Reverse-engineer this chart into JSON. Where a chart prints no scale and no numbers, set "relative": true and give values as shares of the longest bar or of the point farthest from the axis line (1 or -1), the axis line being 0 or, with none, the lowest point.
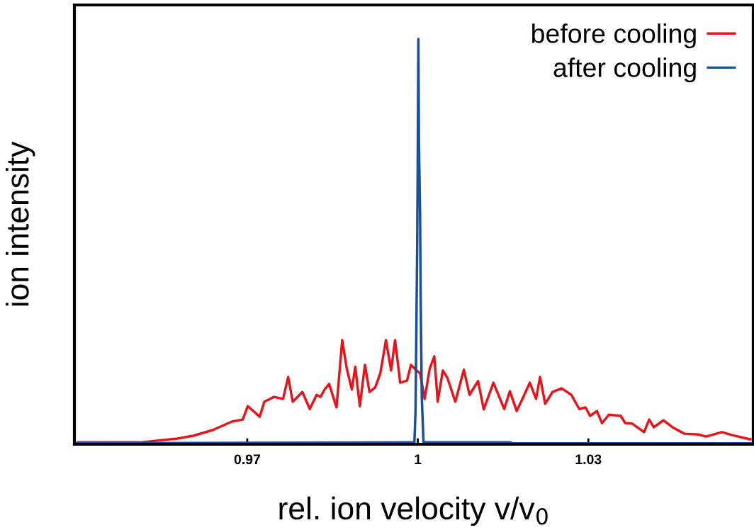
{
  "chart_data": {
    "type": "line",
    "xlabel": "rel. ion velocity v/v$_{0}$",
    "ylabel": "ion intensity",
    "relative": true,
    "legend": "top right",
    "grid": false,
    "xlim": [
      0.9396,
      1.059
    ],
    "xticks": [
      0.97,
      1,
      1.03
    ],
    "series": [
      {
        "name": "before cooling",
        "color": "#e8141a",
        "x": [
          0.9402,
          0.9514,
          0.9577,
          0.9605,
          0.9639,
          0.9673,
          0.9692,
          0.9701,
          0.9722,
          0.973,
          0.9747,
          0.9763,
          0.9772,
          0.978,
          0.9797,
          0.981,
          0.9822,
          0.9829,
          0.9836,
          0.9844,
          0.9857,
          0.9867,
          0.9875,
          0.9884,
          0.989,
          0.9898,
          0.9907,
          0.9915,
          0.9925,
          0.9934,
          0.9944,
          0.9953,
          0.996,
          0.9969,
          0.9981,
          0.9988,
          0.9998,
          1.0004,
          1.0012,
          1.0021,
          1.0029,
          1.0035,
          1.0044,
          1.0052,
          1.0066,
          1.0081,
          1.0091,
          1.0106,
          1.0116,
          1.0133,
          1.0152,
          1.0162,
          1.0174,
          1.0187,
          1.0197,
          1.0208,
          1.0215,
          1.0224,
          1.0237,
          1.0253,
          1.027,
          1.0284,
          1.0295,
          1.0303,
          1.0315,
          1.0324,
          1.0336,
          1.0357,
          1.0365,
          1.0377,
          1.0398,
          1.0407,
          1.0415,
          1.0432,
          1.0448,
          1.0469,
          1.0494,
          1.0507,
          1.0535,
          1.0552,
          1.0585
        ],
        "values": [
          0.005,
          0.005,
          0.014,
          0.021,
          0.035,
          0.056,
          0.061,
          0.094,
          0.068,
          0.105,
          0.117,
          0.112,
          0.166,
          0.105,
          0.129,
          0.087,
          0.122,
          0.117,
          0.135,
          0.149,
          0.091,
          0.257,
          0.187,
          0.135,
          0.191,
          0.094,
          0.196,
          0.129,
          0.14,
          0.175,
          0.257,
          0.182,
          0.257,
          0.152,
          0.157,
          0.196,
          0.182,
          0.175,
          0.112,
          0.187,
          0.217,
          0.105,
          0.182,
          0.164,
          0.105,
          0.184,
          0.122,
          0.156,
          0.086,
          0.152,
          0.087,
          0.131,
          0.082,
          0.121,
          0.152,
          0.112,
          0.166,
          0.1,
          0.129,
          0.138,
          0.122,
          0.087,
          0.091,
          0.07,
          0.082,
          0.052,
          0.073,
          0.07,
          0.052,
          0.051,
          0.03,
          0.061,
          0.042,
          0.059,
          0.042,
          0.026,
          0.024,
          0.019,
          0.03,
          0.023,
          0.012
        ]
      },
      {
        "name": "after cooling",
        "color": "#1a4f9c",
        "x": [
          0.9396,
          0.9988,
          0.9994,
          0.9996,
          0.9999,
          1.0,
          1.0001,
          1.0002,
          1.0004,
          1.0005,
          1.0007,
          1.001,
          1.0162,
          1.0168,
          1.0585
        ],
        "values": [
          0.002,
          0.005,
          0.005,
          0.082,
          0.502,
          0.747,
          1,
          0.747,
          0.572,
          0.362,
          0.117,
          0.005,
          0.005,
          0.002,
          0.002
        ]
      }
    ]
  }
}
